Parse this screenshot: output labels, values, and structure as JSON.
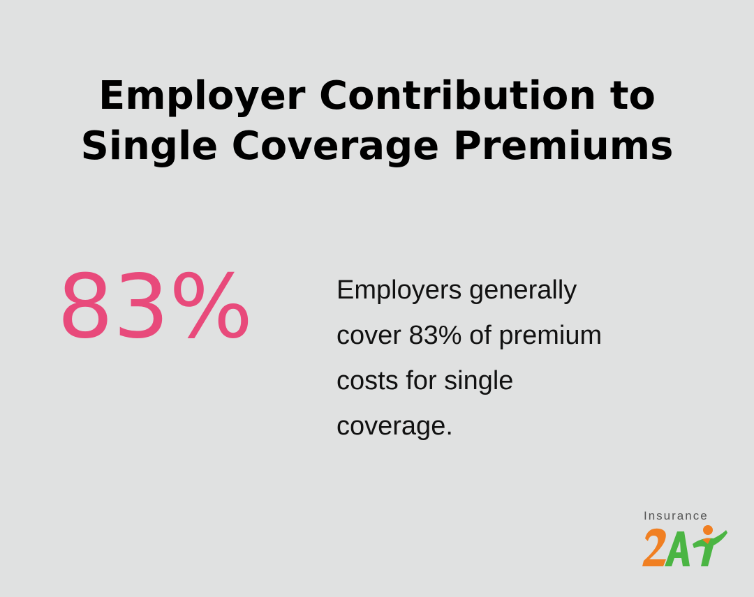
{
  "title": {
    "line1": "Employer Contribution to",
    "line2": "Single Coverage Premiums"
  },
  "stat": {
    "value": "83%"
  },
  "description": {
    "line1": "Employers generally",
    "line2": "cover 83% of premium",
    "line3": "costs for single",
    "line4": "coverage."
  },
  "logo": {
    "word": "Insurance",
    "mark_text": "2A",
    "colors": {
      "orange": "#f07f22",
      "green": "#4bb543"
    }
  },
  "colors": {
    "background": "#e0e1e1",
    "accent": "#e84a7b",
    "text": "#000000"
  }
}
